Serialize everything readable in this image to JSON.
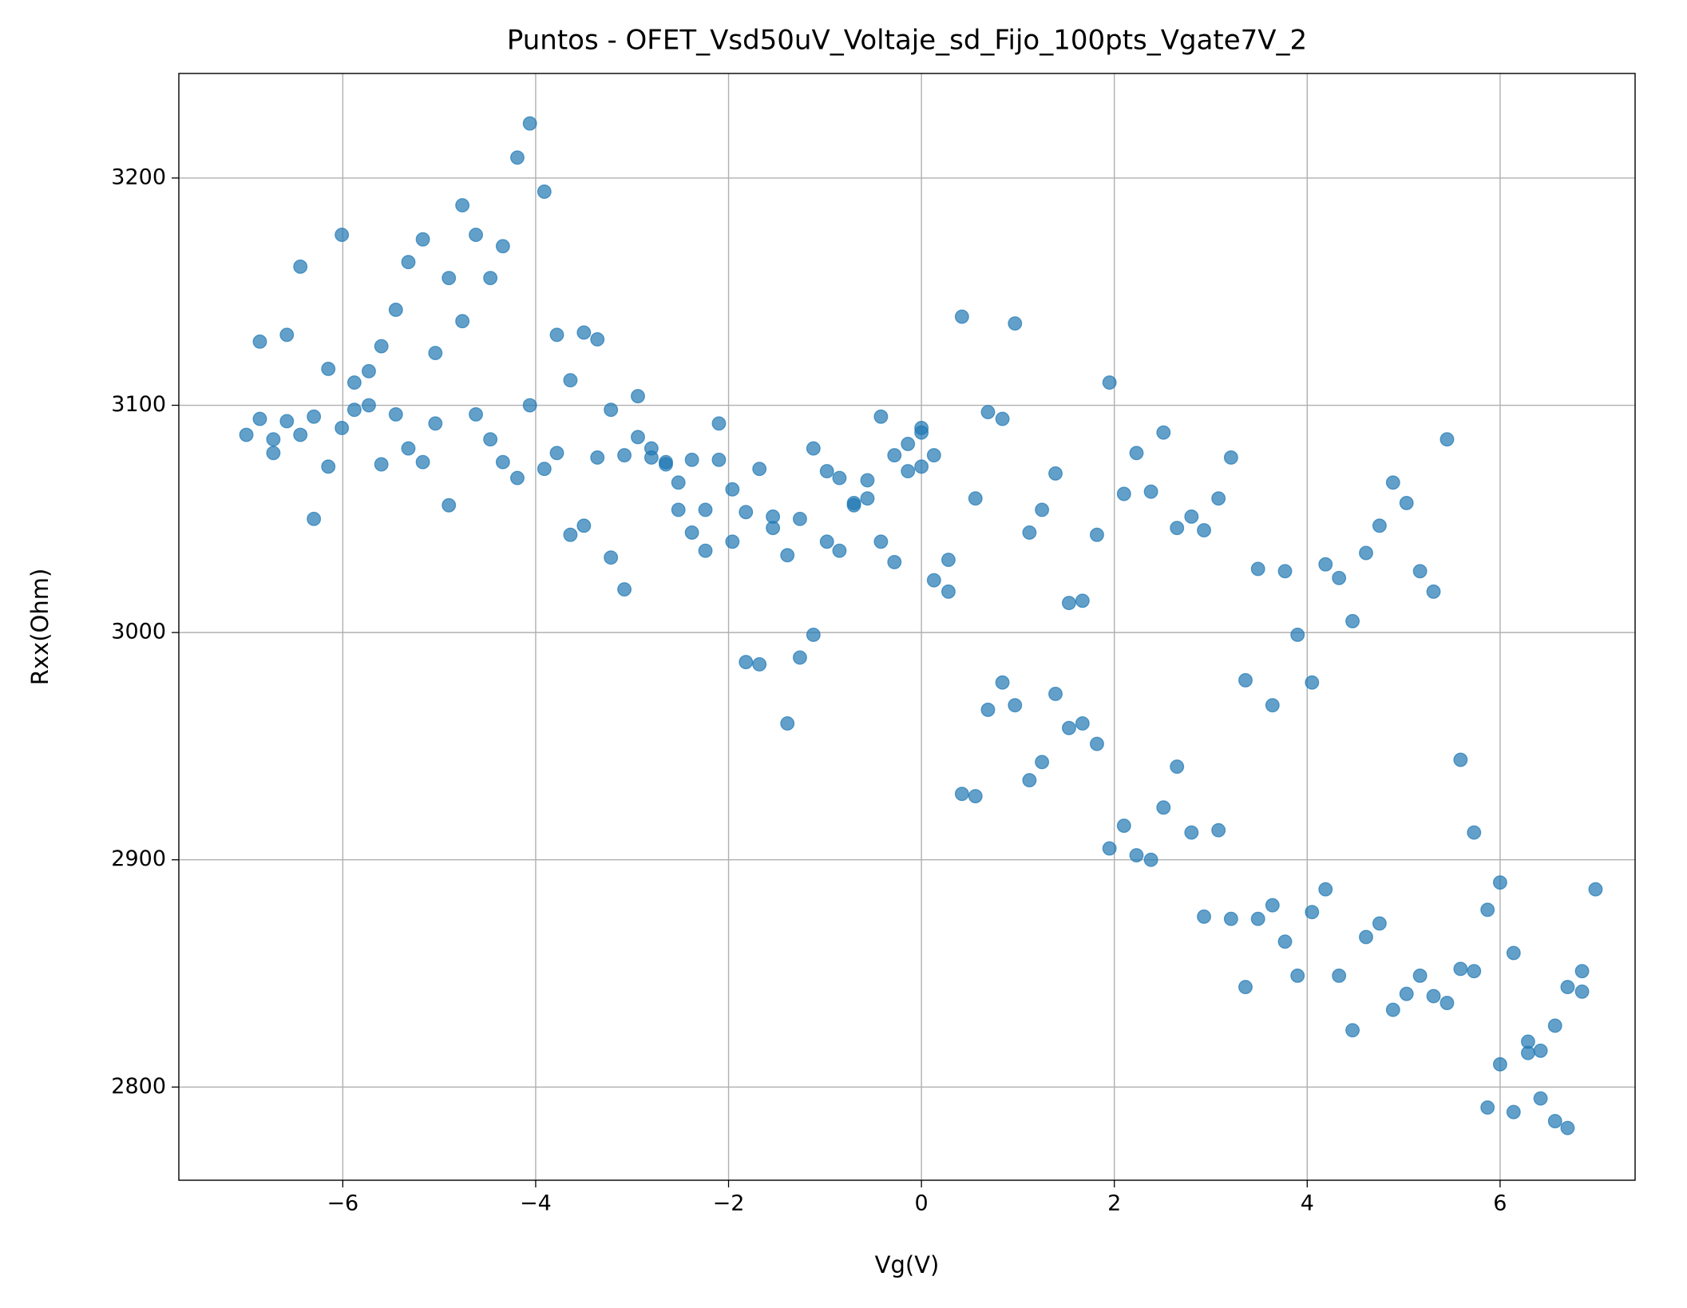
{
  "chart_data": {
    "type": "scatter",
    "title": "Puntos - OFET_Vsd50uV_Voltaje_sd_Fijo_100pts_Vgate7V_2",
    "xlabel": "Vg(V)",
    "ylabel": "Rxx(Ohm)",
    "xlim": [
      -7.7,
      7.4
    ],
    "ylim": [
      2759,
      3246
    ],
    "xticks": [
      {
        "value": -6,
        "label": "−6"
      },
      {
        "value": -4,
        "label": "−4"
      },
      {
        "value": -2,
        "label": "−2"
      },
      0,
      2,
      4,
      6
    ],
    "yticks": [
      2800,
      2900,
      3000,
      3100,
      3200
    ],
    "grid": true,
    "series": [
      {
        "color": "#1f77b4",
        "x": [
          -7.0,
          -6.86,
          -6.86,
          -6.72,
          -6.72,
          -6.58,
          -6.58,
          -6.44,
          -6.44,
          -6.3,
          -6.3,
          -6.15,
          -6.15,
          -6.01,
          -6.01,
          -5.88,
          -5.88,
          -5.73,
          -5.73,
          -5.6,
          -5.6,
          -5.45,
          -5.45,
          -5.32,
          -5.32,
          -5.17,
          -5.17,
          -5.04,
          -5.04,
          -4.9,
          -4.9,
          -4.76,
          -4.76,
          -4.62,
          -4.62,
          -4.47,
          -4.47,
          -4.34,
          -4.34,
          -4.19,
          -4.19,
          -4.06,
          -4.06,
          -3.91,
          -3.91,
          -3.78,
          -3.78,
          -3.64,
          -3.64,
          -3.5,
          -3.5,
          -3.36,
          -3.36,
          -3.22,
          -3.22,
          -3.08,
          -3.08,
          -2.94,
          -2.94,
          -2.8,
          -2.8,
          -2.65,
          -2.65,
          -2.52,
          -2.52,
          -2.38,
          -2.38,
          -2.24,
          -2.24,
          -2.1,
          -2.1,
          -1.96,
          -1.96,
          -1.82,
          -1.82,
          -1.68,
          -1.68,
          -1.54,
          -1.54,
          -1.39,
          -1.39,
          -1.26,
          -1.26,
          -1.12,
          -1.12,
          -0.98,
          -0.98,
          -0.85,
          -0.85,
          -0.7,
          -0.7,
          -0.56,
          -0.56,
          -0.42,
          -0.42,
          -0.28,
          -0.28,
          -0.14,
          -0.14,
          0,
          0,
          0,
          0.13,
          0.13,
          0.28,
          0.28,
          0.42,
          0.42,
          0.56,
          0.56,
          0.69,
          0.69,
          0.84,
          0.84,
          0.97,
          0.97,
          1.12,
          1.12,
          1.25,
          1.25,
          1.39,
          1.39,
          1.53,
          1.53,
          1.67,
          1.67,
          1.82,
          1.82,
          1.95,
          1.95,
          2.1,
          2.1,
          2.23,
          2.23,
          2.38,
          2.38,
          2.51,
          2.51,
          2.65,
          2.65,
          2.8,
          2.8,
          2.93,
          2.93,
          3.08,
          3.08,
          3.21,
          3.21,
          3.36,
          3.36,
          3.49,
          3.49,
          3.64,
          3.64,
          3.77,
          3.77,
          3.9,
          3.9,
          4.05,
          4.05,
          4.19,
          4.19,
          4.33,
          4.33,
          4.47,
          4.47,
          4.61,
          4.61,
          4.75,
          4.75,
          4.89,
          4.89,
          5.03,
          5.03,
          5.17,
          5.17,
          5.31,
          5.31,
          5.45,
          5.45,
          5.59,
          5.59,
          5.73,
          5.73,
          5.87,
          5.87,
          6.0,
          6.0,
          6.14,
          6.14,
          6.29,
          6.29,
          6.42,
          6.42,
          6.57,
          6.57,
          6.7,
          6.7,
          6.85,
          6.85,
          6.99
        ],
        "values": [
          3087,
          3128,
          3094,
          3085,
          3079,
          3131,
          3093,
          3161,
          3087,
          3095,
          3050,
          3116,
          3073,
          3175,
          3090,
          3110,
          3098,
          3115,
          3100,
          3126,
          3074,
          3142,
          3096,
          3163,
          3081,
          3173,
          3075,
          3123,
          3092,
          3156,
          3056,
          3137,
          3188,
          3175,
          3096,
          3156,
          3085,
          3170,
          3075,
          3209,
          3068,
          3224,
          3100,
          3194,
          3072,
          3131,
          3079,
          3111,
          3043,
          3132,
          3047,
          3129,
          3077,
          3098,
          3033,
          3078,
          3019,
          3104,
          3086,
          3081,
          3077,
          3075,
          3074,
          3066,
          3054,
          3076,
          3044,
          3054,
          3036,
          3092,
          3076,
          3063,
          3040,
          3053,
          2987,
          3072,
          2986,
          3051,
          3046,
          3034,
          2960,
          3050,
          2989,
          3081,
          2999,
          3071,
          3040,
          3068,
          3036,
          3057,
          3056,
          3067,
          3059,
          3095,
          3040,
          3078,
          3031,
          3083,
          3071,
          3090,
          3088,
          3073,
          3078,
          3023,
          3032,
          3018,
          3139,
          2929,
          3059,
          2928,
          3097,
          2966,
          3094,
          2978,
          3136,
          2968,
          3044,
          2935,
          3054,
          2943,
          3070,
          2973,
          3013,
          2958,
          3014,
          2960,
          3043,
          2951,
          3110,
          2905,
          3061,
          2915,
          3079,
          2902,
          3062,
          2900,
          3088,
          2923,
          3046,
          2941,
          3051,
          2912,
          3045,
          2875,
          3059,
          2913,
          3077,
          2874,
          2979,
          2844,
          3028,
          2874,
          2880,
          2968,
          3027,
          2864,
          2999,
          2849,
          2978,
          2877,
          3030,
          2887,
          3024,
          2849,
          3005,
          2825,
          3035,
          2866,
          3047,
          2872,
          3066,
          2834,
          3057,
          2841,
          3027,
          2849,
          3018,
          2840,
          3085,
          2837,
          2944,
          2852,
          2912,
          2851,
          2878,
          2791,
          2890,
          2810,
          2859,
          2789,
          2820,
          2815,
          2816,
          2795,
          2827,
          2785,
          2844,
          2782,
          2842,
          2851,
          2887
        ]
      }
    ]
  }
}
